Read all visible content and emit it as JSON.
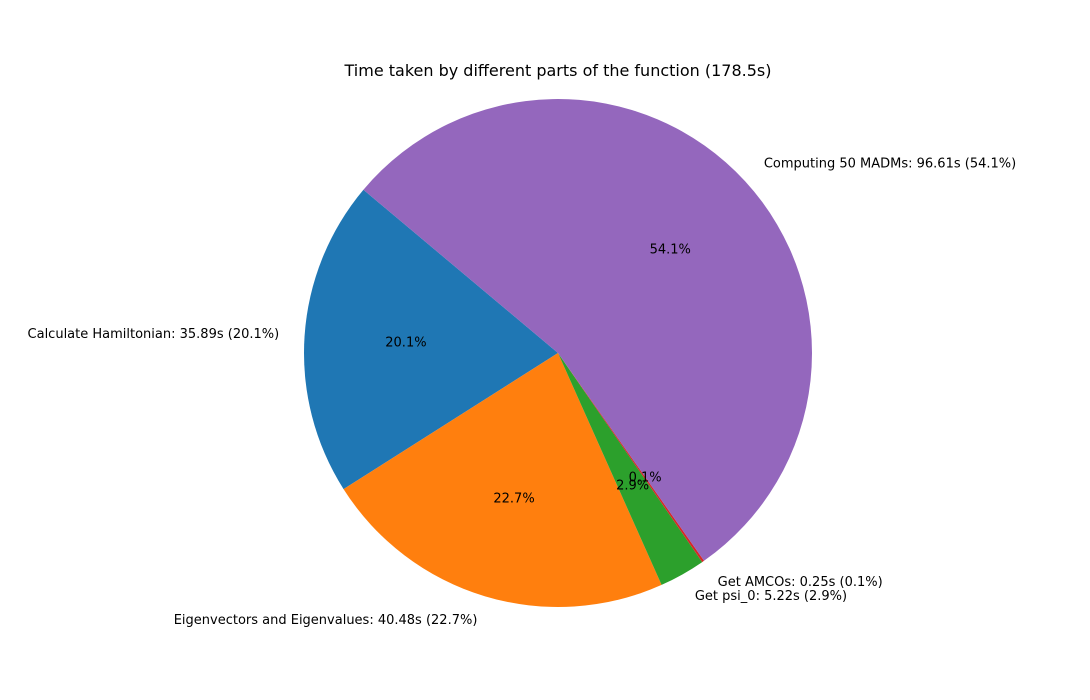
{
  "chart_data": {
    "type": "pie",
    "title": "Time taken by different parts of the function (178.5s)",
    "slices": [
      {
        "name": "Calculate Hamiltonian",
        "value": 35.89,
        "percent": 20.1,
        "label": "Calculate Hamiltonian: 35.89s (20.1%)",
        "pct_label": "20.1%",
        "color": "#1f77b4"
      },
      {
        "name": "Eigenvectors and Eigenvalues",
        "value": 40.48,
        "percent": 22.7,
        "label": "Eigenvectors and Eigenvalues: 40.48s (22.7%)",
        "pct_label": "22.7%",
        "color": "#ff7f0e"
      },
      {
        "name": "Get psi_0",
        "value": 5.22,
        "percent": 2.9,
        "label": "Get psi_0: 5.22s (2.9%)",
        "pct_label": "2.9%",
        "color": "#2ca02c"
      },
      {
        "name": "Get AMCOs",
        "value": 0.25,
        "percent": 0.1,
        "label": "Get AMCOs: 0.25s (0.1%)",
        "pct_label": "0.1%",
        "color": "#d62728"
      },
      {
        "name": "Computing 50 MADMs",
        "value": 96.61,
        "percent": 54.1,
        "label": "Computing 50 MADMs: 96.61s (54.1%)",
        "pct_label": "54.1%",
        "color": "#9467bd"
      }
    ],
    "start_angle_deg": 140,
    "direction": "counterclockwise"
  }
}
